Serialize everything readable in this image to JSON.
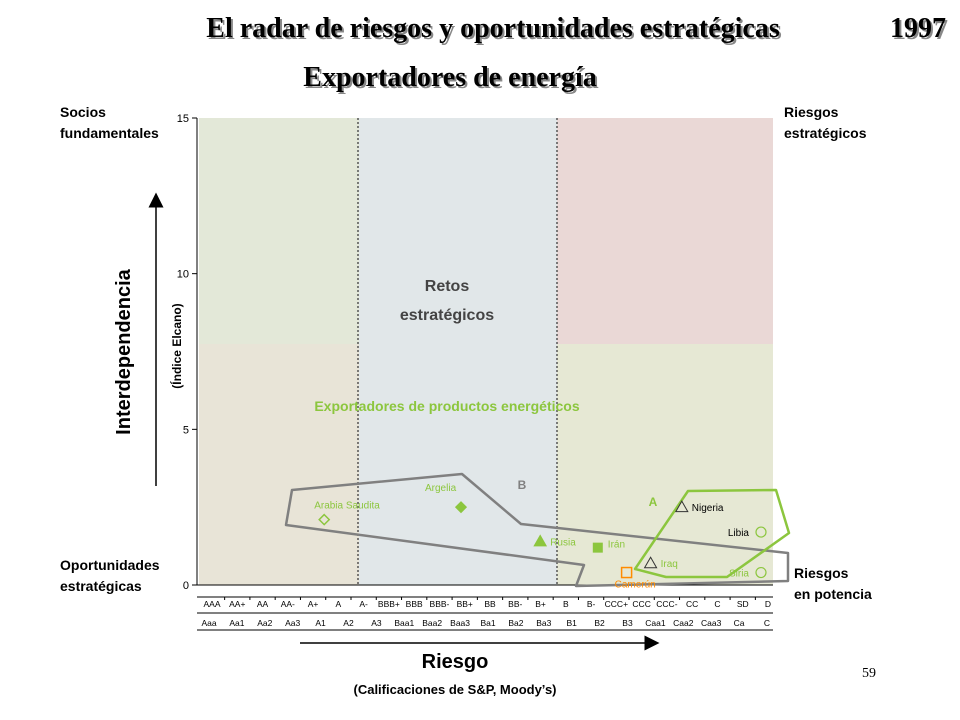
{
  "slide": {
    "title": "El radar de riesgos y oportunidades estratégicas",
    "year": "1997",
    "subtitle": "Exportadores de energía",
    "page_number": "59"
  },
  "colors": {
    "green_zone": "#e3e8d8",
    "red_zone": "#ead8d6",
    "blue_zone": "#e1e7e9",
    "beige_zone": "#e8e4d7",
    "lightgreen_zone": "#e6e8d4",
    "accent_green": "#8cc63e",
    "group_gray": "#808080",
    "orange": "#ff8c00",
    "text": "#000000"
  },
  "chart_data": {
    "type": "scatter",
    "ylabel": "Interdependencia",
    "ylabel_sub": "(Índice Elcano)",
    "xlabel": "Riesgo",
    "xlabel_sub": "(Calificaciones de S&P, Moody’s)",
    "ylim": [
      0,
      15
    ],
    "yticks": [
      0,
      5,
      10,
      15
    ],
    "xlim": [
      0,
      24
    ],
    "x_sp": [
      "AAA",
      "AA+",
      "AA",
      "AA-",
      "A+",
      "A",
      "A-",
      "BBB+",
      "BBB",
      "BBB-",
      "BB+",
      "BB",
      "BB-",
      "B+",
      "B",
      "B-",
      "CCC+",
      "CCC",
      "CCC-",
      "CC",
      "C",
      "SD",
      "D"
    ],
    "x_moodys": [
      "Aaa",
      "Aa1",
      "Aa2",
      "Aa3",
      "A1",
      "A2",
      "A3",
      "Baa1",
      "Baa2",
      "Baa3",
      "Ba1",
      "Ba2",
      "Ba3",
      "B1",
      "B2",
      "B3",
      "Caa1",
      "Caa2",
      "Caa3",
      "Ca",
      "C"
    ],
    "corner_labels": {
      "top_left": [
        "Socios",
        "fundamentales"
      ],
      "top_right": [
        "Riesgos",
        "estratégicos"
      ],
      "bottom_left": [
        "Oportunidades",
        "estratégicas"
      ],
      "bottom_right": [
        "Riesgos",
        "en potencia"
      ]
    },
    "zone_label": [
      "Retos",
      "estratégicos"
    ],
    "series_label": "Exportadores de productos energéticos",
    "group_labels": {
      "A": "A",
      "B": "B"
    },
    "points": [
      {
        "name": "Arabia Saudita",
        "marker": "diamond-open",
        "x": 5.3,
        "y": 2.1
      },
      {
        "name": "Argelia",
        "marker": "diamond-filled",
        "x": 11.0,
        "y": 2.5
      },
      {
        "name": "Rusia",
        "marker": "triangle-filled",
        "x": 14.3,
        "y": 1.4
      },
      {
        "name": "Irán",
        "marker": "square-filled",
        "x": 16.7,
        "y": 1.2
      },
      {
        "name": "Camerún",
        "marker": "square-open",
        "x": 17.9,
        "y": 0.4
      },
      {
        "name": "Nigeria",
        "marker": "triangle-open",
        "x": 20.2,
        "y": 2.5
      },
      {
        "name": "Iraq",
        "marker": "triangle-open",
        "x": 18.9,
        "y": 0.7
      },
      {
        "name": "Libia",
        "marker": "circle-open",
        "x": 23.5,
        "y": 1.7
      },
      {
        "name": "Siria",
        "marker": "circle-open",
        "x": 23.5,
        "y": 0.4
      }
    ]
  }
}
